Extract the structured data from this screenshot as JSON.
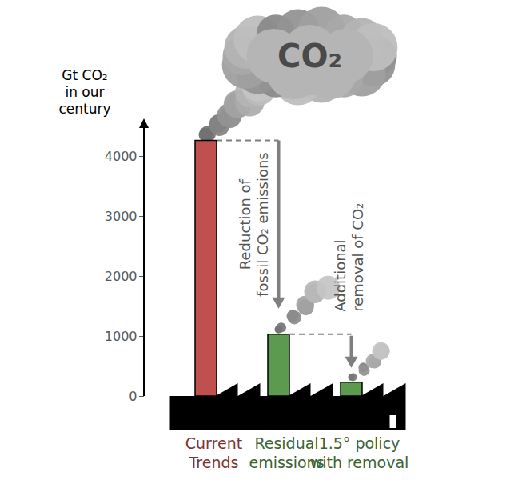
{
  "chart_data": {
    "type": "bar",
    "ylabel": "Gt CO₂ in our century",
    "categories": [
      "Current Trends",
      "Residual emissions",
      "1.5° policy with removal"
    ],
    "values": [
      4260,
      1030,
      230
    ],
    "colors": [
      "#c0504d",
      "#5b9a4f",
      "#5b9a4f"
    ],
    "ylim": [
      0,
      4600
    ],
    "yticks": [
      0,
      1000,
      2000,
      3000,
      4000
    ],
    "annotations": [
      "CO₂",
      "Reduction of fossil CO₂ emissions",
      "Additional removal of CO₂"
    ],
    "grid": false
  }
}
